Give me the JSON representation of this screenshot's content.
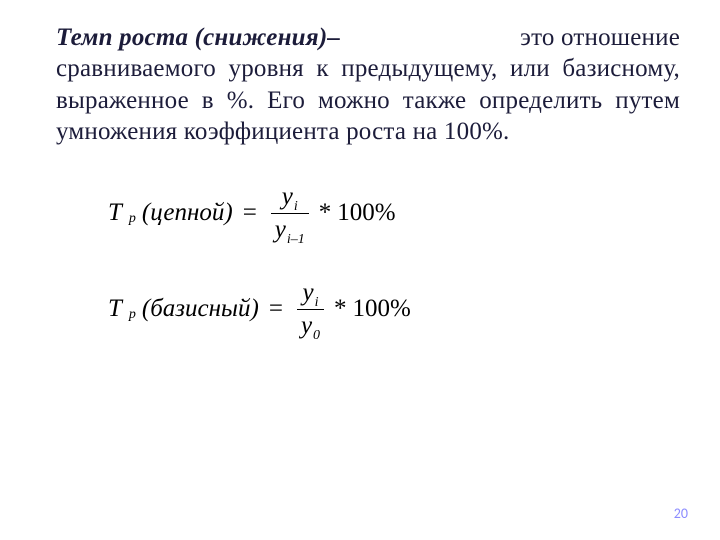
{
  "text": {
    "title_part": "Темп роста (снижения)–",
    "line1_suffix": "это отношение",
    "rest": "сравниваемого уровня к предыдущему, или базисному, выраженное  в  %. Его можно также определить путем умножения коэффициента роста на 100%."
  },
  "formula": {
    "T": "Т",
    "p": "р",
    "chain": "(цепной)",
    "base": "(базисный)",
    "equals": "=",
    "y": "y",
    "i": "i",
    "im1": "i–1",
    "zero": "0",
    "star": "*",
    "hundred": "100%"
  },
  "page_number": "20",
  "colors": {
    "text": "#1c1c3a",
    "page_number": "#8c8cff",
    "bg": "#ffffff"
  },
  "font_sizes": {
    "body": 25,
    "sub": 14,
    "page_num": 14
  }
}
